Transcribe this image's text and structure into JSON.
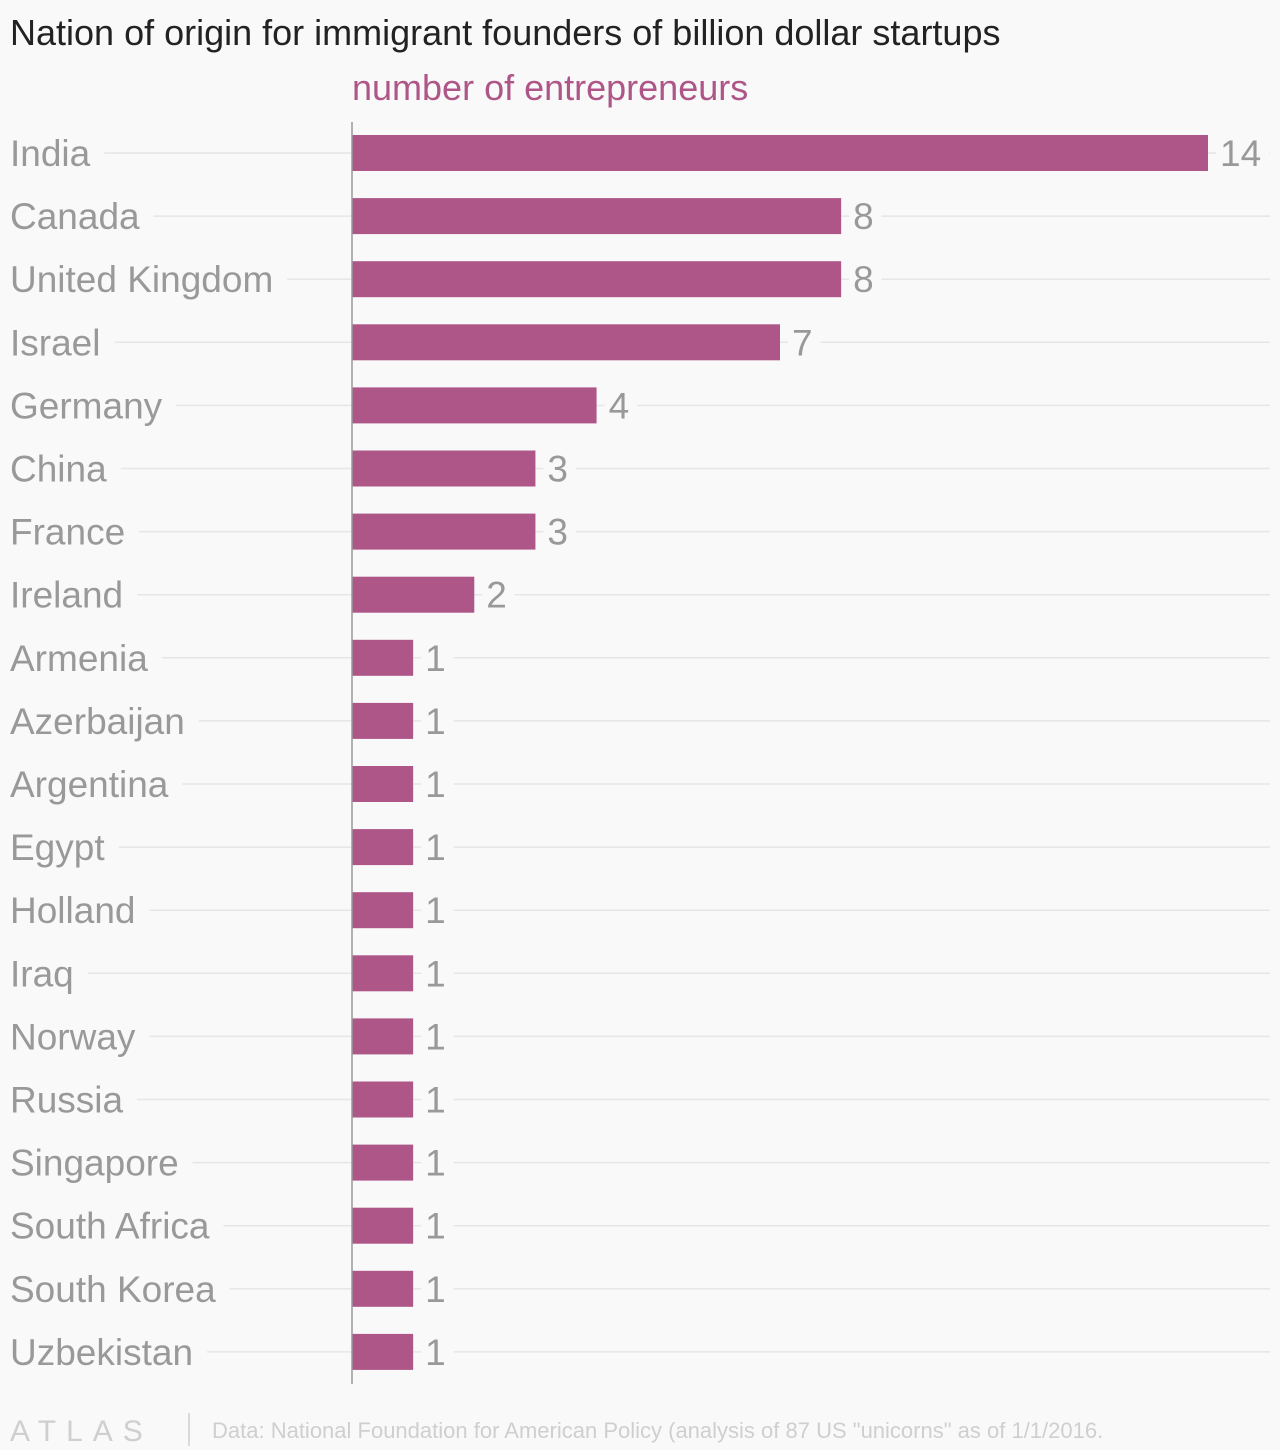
{
  "chart_data": {
    "type": "bar",
    "orientation": "horizontal",
    "title": "Nation of origin for immigrant founders of billion dollar startups",
    "subtitle": "number of entrepreneurs",
    "categories": [
      "India",
      "Canada",
      "United Kingdom",
      "Israel",
      "Germany",
      "China",
      "France",
      "Ireland",
      "Armenia",
      "Azerbaijan",
      "Argentina",
      "Egypt",
      "Holland",
      "Iraq",
      "Norway",
      "Russia",
      "Singapore",
      "South Africa",
      "South Korea",
      "Uzbekistan"
    ],
    "values": [
      14,
      8,
      8,
      7,
      4,
      3,
      3,
      2,
      1,
      1,
      1,
      1,
      1,
      1,
      1,
      1,
      1,
      1,
      1,
      1
    ],
    "xlim": [
      0,
      14
    ],
    "xlabel": "",
    "ylabel": "",
    "grid": true,
    "data_labels": true,
    "colors": {
      "bar": "#ad5687",
      "subtitle": "#ad5687",
      "labels": "#999999",
      "grid": "#e6e6e6",
      "axis": "#999999"
    }
  },
  "footer": {
    "logo": "ATLAS",
    "source": "Data: National Foundation for American Policy (analysis of 87 US \"unicorns\" as of 1/1/2016."
  }
}
